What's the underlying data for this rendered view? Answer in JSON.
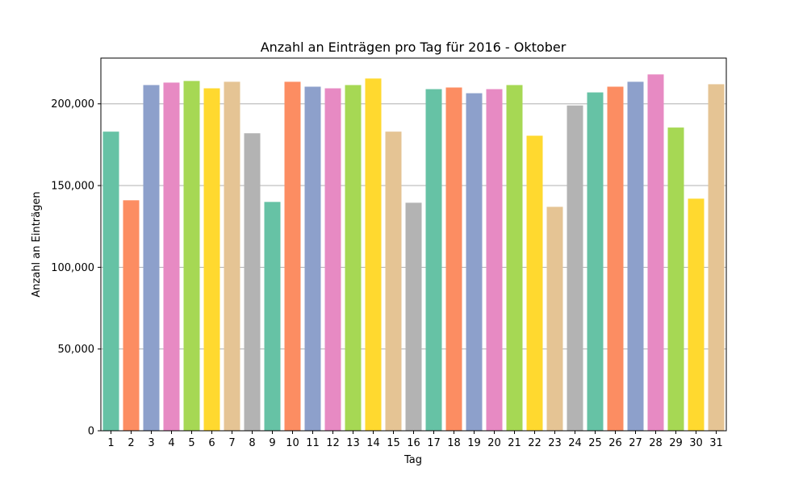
{
  "chart_data": {
    "type": "bar",
    "title": "Anzahl an Einträgen pro Tag für 2016 - Oktober",
    "xlabel": "Tag",
    "ylabel": "Anzahl an Einträgen",
    "ylim": [
      0,
      228000
    ],
    "yticks": [
      0,
      50000,
      100000,
      150000,
      200000
    ],
    "ytick_labels": [
      "0",
      "50,000",
      "100,000",
      "150,000",
      "200,000"
    ],
    "grid": "y",
    "categories": [
      "1",
      "2",
      "3",
      "4",
      "5",
      "6",
      "7",
      "8",
      "9",
      "10",
      "11",
      "12",
      "13",
      "14",
      "15",
      "16",
      "17",
      "18",
      "19",
      "20",
      "21",
      "22",
      "23",
      "24",
      "25",
      "26",
      "27",
      "28",
      "29",
      "30",
      "31"
    ],
    "values": [
      183000,
      141000,
      211500,
      213000,
      214000,
      209500,
      213500,
      182000,
      140000,
      213500,
      210500,
      209500,
      211500,
      215500,
      183000,
      139500,
      209000,
      210000,
      206500,
      209000,
      211500,
      180500,
      137000,
      199000,
      207000,
      210500,
      213500,
      218000,
      185500,
      142000,
      212000
    ],
    "palette": [
      "#66c2a5",
      "#fc8d62",
      "#8da0cb",
      "#e78ac3",
      "#a6d854",
      "#ffd92f",
      "#e5c494",
      "#b3b3b3"
    ]
  }
}
